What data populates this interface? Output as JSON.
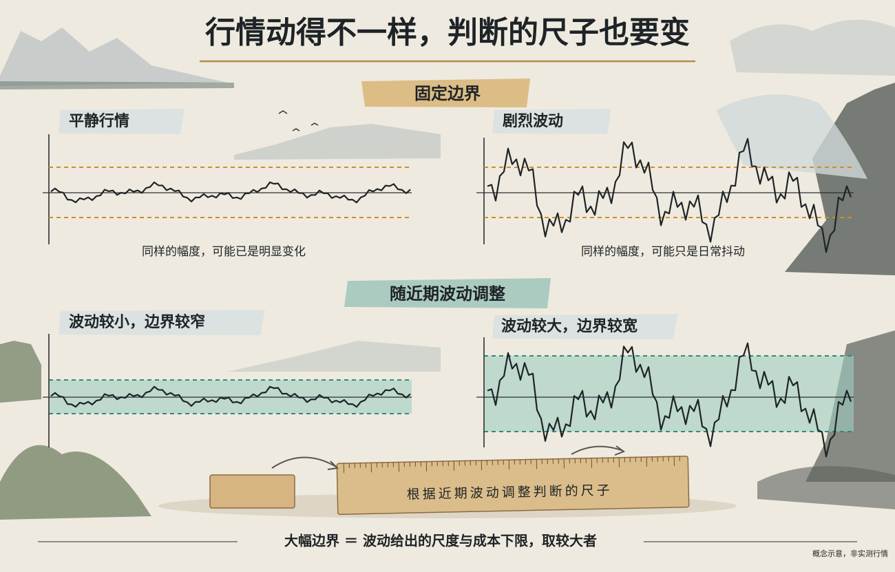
{
  "header": {
    "title": "行情动得不一样，判断的尺子也要变"
  },
  "sections": [
    {
      "title": "固定边界",
      "panels": [
        {
          "label": "平静行情",
          "caption": "同样的幅度，可能已是明显变化"
        },
        {
          "label": "剧烈波动",
          "caption": "同样的幅度，可能只是日常抖动"
        }
      ]
    },
    {
      "title": "随近期波动调整",
      "panels": [
        {
          "label": "波动较小，边界较窄"
        },
        {
          "label": "波动较大，边界较宽"
        }
      ]
    }
  ],
  "ruler": {
    "label": "根据近期波动调整判断的尺子"
  },
  "footer": {
    "formula": "大幅边界 ＝ 波动给出的尺度与成本下限，取较大者",
    "note": "概念示意，非实测行情"
  }
}
